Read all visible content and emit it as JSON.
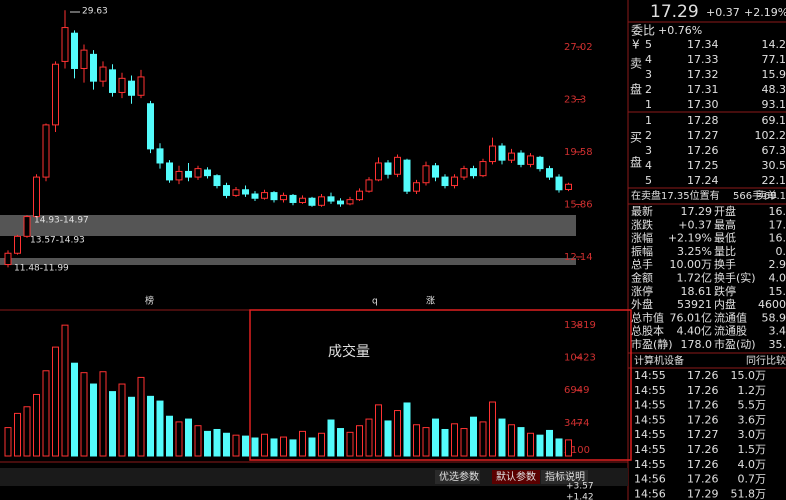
{
  "chart": {
    "ylim": [
      11,
      29.9
    ],
    "yticks": [
      27.02,
      23.3,
      19.58,
      15.86,
      12.14
    ],
    "annotations": [
      "29.63",
      "14.93-14.97",
      "13.57-14.93",
      "11.48-11.99"
    ],
    "markers": [
      "榜",
      "q",
      "涨"
    ],
    "candles": [
      [
        11.6,
        12.4,
        12.6,
        11.4
      ],
      [
        12.4,
        13.6,
        13.7,
        12.3
      ],
      [
        13.6,
        15.0,
        15.1,
        13.5
      ],
      [
        15.0,
        17.8,
        18.0,
        14.9
      ],
      [
        17.8,
        21.5,
        21.6,
        17.5
      ],
      [
        21.5,
        25.8,
        26.0,
        21.0
      ],
      [
        26.0,
        28.4,
        29.63,
        25.5
      ],
      [
        28.0,
        25.5,
        28.2,
        24.8
      ],
      [
        25.5,
        26.8,
        27.2,
        24.5
      ],
      [
        26.5,
        24.6,
        26.8,
        24.0
      ],
      [
        24.6,
        25.6,
        26.0,
        24.2
      ],
      [
        25.4,
        23.8,
        25.8,
        23.5
      ],
      [
        23.8,
        24.8,
        25.2,
        23.4
      ],
      [
        24.6,
        23.6,
        25.0,
        23.0
      ],
      [
        23.6,
        24.9,
        25.4,
        23.4
      ],
      [
        23.0,
        19.8,
        23.2,
        19.5
      ],
      [
        19.8,
        18.8,
        20.2,
        18.4
      ],
      [
        18.8,
        17.6,
        19.0,
        17.4
      ],
      [
        17.6,
        18.2,
        18.6,
        17.3
      ],
      [
        18.2,
        17.8,
        18.8,
        17.5
      ],
      [
        17.8,
        18.4,
        18.6,
        17.6
      ],
      [
        18.3,
        17.9,
        18.5,
        17.7
      ],
      [
        17.9,
        17.2,
        18.0,
        17.0
      ],
      [
        17.2,
        16.5,
        17.4,
        16.3
      ],
      [
        16.5,
        16.9,
        17.1,
        16.4
      ],
      [
        16.9,
        16.6,
        17.2,
        16.4
      ],
      [
        16.6,
        16.3,
        16.8,
        16.1
      ],
      [
        16.3,
        16.7,
        16.9,
        16.2
      ],
      [
        16.7,
        16.2,
        16.8,
        16.0
      ],
      [
        16.2,
        16.5,
        16.7,
        16.0
      ],
      [
        16.5,
        16.0,
        16.6,
        15.8
      ],
      [
        16.0,
        16.3,
        16.5,
        15.9
      ],
      [
        16.3,
        15.8,
        16.4,
        15.7
      ],
      [
        15.8,
        16.4,
        16.6,
        15.7
      ],
      [
        16.4,
        16.1,
        16.7,
        15.9
      ],
      [
        16.1,
        15.9,
        16.3,
        15.7
      ],
      [
        15.9,
        16.2,
        16.4,
        15.8
      ],
      [
        16.2,
        16.8,
        17.0,
        16.1
      ],
      [
        16.8,
        17.6,
        17.8,
        16.7
      ],
      [
        17.6,
        18.8,
        19.2,
        17.5
      ],
      [
        18.8,
        18.0,
        19.0,
        17.7
      ],
      [
        18.0,
        19.2,
        19.4,
        17.8
      ],
      [
        19.0,
        16.8,
        19.1,
        16.6
      ],
      [
        16.8,
        17.4,
        17.6,
        16.6
      ],
      [
        17.4,
        18.6,
        18.9,
        17.2
      ],
      [
        18.6,
        17.8,
        18.8,
        17.5
      ],
      [
        17.8,
        17.2,
        18.0,
        17.0
      ],
      [
        17.2,
        17.8,
        18.0,
        17.0
      ],
      [
        17.8,
        18.4,
        18.6,
        17.6
      ],
      [
        18.4,
        17.9,
        18.6,
        17.7
      ],
      [
        17.9,
        18.9,
        19.1,
        17.8
      ],
      [
        18.9,
        20.0,
        20.6,
        18.7
      ],
      [
        20.0,
        19.0,
        20.2,
        18.7
      ],
      [
        19.0,
        19.5,
        19.8,
        18.8
      ],
      [
        19.5,
        18.7,
        19.7,
        18.5
      ],
      [
        18.7,
        19.3,
        19.5,
        18.5
      ],
      [
        19.2,
        18.4,
        19.3,
        18.2
      ],
      [
        18.4,
        17.8,
        18.6,
        17.6
      ],
      [
        17.8,
        16.9,
        18.0,
        16.7
      ],
      [
        16.92,
        17.29,
        17.4,
        16.8
      ]
    ],
    "volume_title": "成交量",
    "volume_ylim": [
      0,
      14500
    ],
    "volume_yticks": [
      13819,
      10423,
      6949,
      3474
    ],
    "volume_unit": "X100",
    "volumes": [
      3000,
      4500,
      5200,
      6500,
      9000,
      11500,
      13819,
      9800,
      8800,
      7600,
      8900,
      6800,
      7600,
      6200,
      8300,
      6300,
      5800,
      4200,
      3600,
      3900,
      3200,
      2600,
      2800,
      2400,
      2200,
      2100,
      1900,
      2300,
      1800,
      2000,
      1700,
      2600,
      1900,
      2400,
      3800,
      2900,
      2500,
      3200,
      3900,
      5400,
      3700,
      4800,
      5600,
      3300,
      3000,
      3900,
      2800,
      3400,
      2900,
      4100,
      3600,
      5700,
      3900,
      3300,
      3000,
      2400,
      2200,
      2700,
      1800,
      1700
    ],
    "buttons": [
      "优选参数",
      "默认参数",
      "指标说明"
    ],
    "indicator_labels": [
      "+3.57",
      "+1.42"
    ]
  },
  "quote": {
    "price": "17.29",
    "change": "+0.37",
    "change_pct": "+2.19%",
    "ratio_label": "委比",
    "ratio": "+0.76%",
    "side_labels": [
      "¥",
      "卖",
      "盘",
      "买",
      "盘"
    ],
    "asks": [
      [
        "5",
        "17.34",
        "14.2"
      ],
      [
        "4",
        "17.33",
        "77.1"
      ],
      [
        "3",
        "17.32",
        "15.9"
      ],
      [
        "2",
        "17.31",
        "48.3"
      ],
      [
        "1",
        "17.30",
        "93.1"
      ]
    ],
    "bids": [
      [
        "1",
        "17.28",
        "69.1"
      ],
      [
        "2",
        "17.27",
        "102.2"
      ],
      [
        "3",
        "17.26",
        "67.3"
      ],
      [
        "4",
        "17.25",
        "30.5"
      ],
      [
        "5",
        "17.24",
        "22.1"
      ]
    ],
    "notice": [
      "在卖盘17.35位置有",
      "566手",
      "卖单",
      "69.1"
    ],
    "stats": [
      [
        "最新",
        "17.29",
        "开盘",
        "16."
      ],
      [
        "涨跌",
        "+0.37",
        "最高",
        "17."
      ],
      [
        "涨幅",
        "+2.19%",
        "最低",
        "16."
      ],
      [
        "振幅",
        "3.25%",
        "量比",
        "0."
      ],
      [
        "总手",
        "10.00万",
        "换手",
        "2.9"
      ],
      [
        "金额",
        "1.72亿",
        "换手(实)",
        "4.0"
      ],
      [
        "涨停",
        "18.61",
        "跌停",
        "15."
      ],
      [
        "外盘",
        "53921",
        "内盘",
        "4600"
      ],
      [
        "总市值",
        "76.01亿",
        "流通值",
        "58.9"
      ],
      [
        "总股本",
        "4.40亿",
        "流通股",
        "3.4"
      ],
      [
        "市盈(静)",
        "178.0",
        "市盈(动)",
        "35."
      ]
    ],
    "industry": "计算机设备",
    "compare": "同行比较",
    "trades": [
      {
        "time": "14:55",
        "price": "17.26",
        "vol": "15.0万",
        "color": "#00e600"
      },
      {
        "time": "14:55",
        "price": "17.26",
        "vol": "1.2万",
        "color": "#ff3232"
      },
      {
        "time": "14:55",
        "price": "17.26",
        "vol": "5.5万",
        "color": "#ff3232"
      },
      {
        "time": "14:55",
        "price": "17.26",
        "vol": "3.6万",
        "color": "#00e600"
      },
      {
        "time": "14:55",
        "price": "17.27",
        "vol": "3.0万",
        "color": "#ff3232"
      },
      {
        "time": "14:55",
        "price": "17.26",
        "vol": "1.5万",
        "color": "#00e600"
      },
      {
        "time": "14:55",
        "price": "17.26",
        "vol": "4.0万",
        "color": "#ff3232"
      },
      {
        "time": "14:56",
        "price": "17.26",
        "vol": "0.7万",
        "color": "#00e600"
      },
      {
        "time": "14:56",
        "price": "17.29",
        "vol": "51.8万",
        "color": "#ff3232"
      }
    ]
  }
}
